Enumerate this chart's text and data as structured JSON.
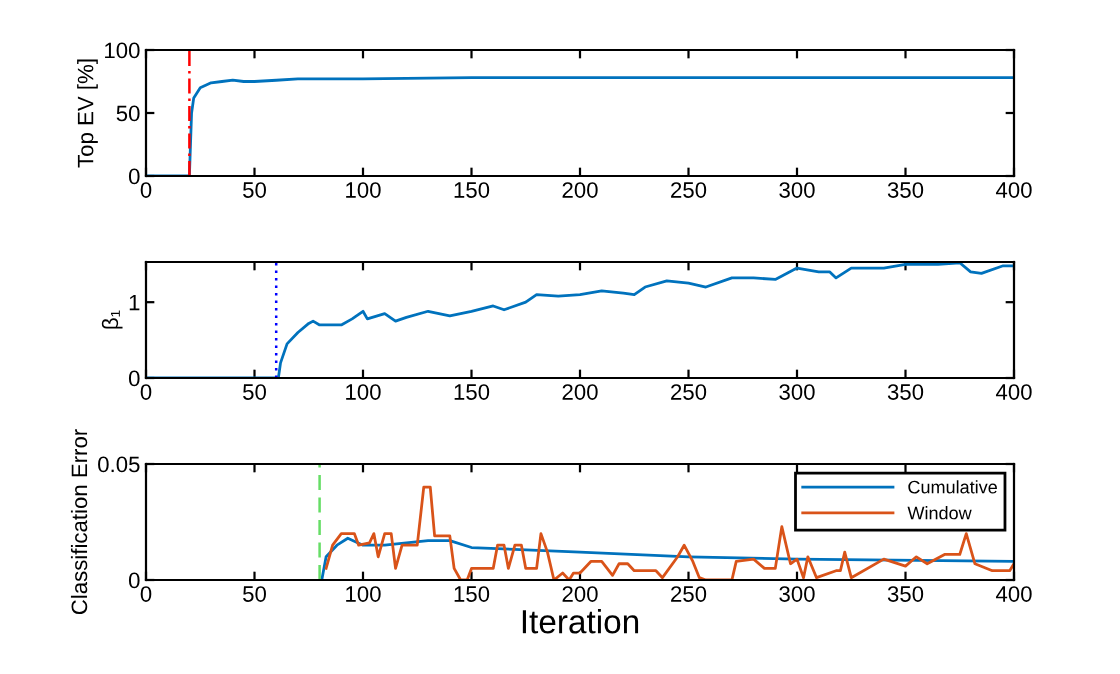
{
  "chart_data": [
    {
      "type": "line",
      "ylabel": "Top EV [%]",
      "xlim": [
        0,
        400
      ],
      "xticks": [
        0,
        50,
        100,
        150,
        200,
        250,
        300,
        350,
        400
      ],
      "ylim": [
        0,
        100
      ],
      "yticks": [
        0,
        50,
        100
      ],
      "grid": false,
      "legend": false,
      "x": [
        0,
        20,
        21,
        22,
        25,
        30,
        35,
        40,
        45,
        50,
        60,
        70,
        100,
        150,
        200,
        250,
        300,
        350,
        400
      ],
      "series": [
        {
          "color": "#0072bd",
          "values": [
            0,
            0,
            50,
            62,
            70,
            74,
            75,
            76,
            75,
            75,
            76,
            77,
            77,
            78,
            78,
            78,
            78,
            78,
            78
          ]
        }
      ],
      "ref_lines": [
        {
          "axis": "x",
          "value": 20,
          "color": "#ff0000",
          "line_style": "dashdot"
        }
      ]
    },
    {
      "type": "line",
      "ylabel": "β₁",
      "xlim": [
        0,
        400
      ],
      "xticks": [
        0,
        50,
        100,
        150,
        200,
        250,
        300,
        350,
        400
      ],
      "ylim": [
        0,
        1.53
      ],
      "yticks": [
        0,
        1
      ],
      "grid": false,
      "legend": false,
      "x": [
        0,
        61,
        62,
        65,
        70,
        75,
        77,
        80,
        90,
        95,
        100,
        102,
        110,
        115,
        120,
        130,
        140,
        150,
        160,
        165,
        175,
        180,
        190,
        200,
        210,
        220,
        225,
        230,
        240,
        250,
        258,
        270,
        280,
        290,
        300,
        310,
        315,
        318,
        325,
        340,
        350,
        365,
        375,
        380,
        385,
        395,
        400
      ],
      "series": [
        {
          "color": "#0072bd",
          "values": [
            0,
            0,
            0.2,
            0.45,
            0.6,
            0.72,
            0.75,
            0.7,
            0.7,
            0.78,
            0.88,
            0.78,
            0.85,
            0.75,
            0.8,
            0.88,
            0.82,
            0.88,
            0.95,
            0.9,
            1.0,
            1.1,
            1.08,
            1.1,
            1.15,
            1.12,
            1.1,
            1.2,
            1.28,
            1.25,
            1.2,
            1.32,
            1.32,
            1.3,
            1.45,
            1.4,
            1.4,
            1.32,
            1.45,
            1.45,
            1.5,
            1.5,
            1.52,
            1.4,
            1.38,
            1.48,
            1.48
          ]
        }
      ],
      "ref_lines": [
        {
          "axis": "x",
          "value": 60,
          "color": "#0000ff",
          "line_style": "dotted"
        }
      ]
    },
    {
      "type": "line",
      "xlabel": "Iteration",
      "ylabel": "Classification Error",
      "xlim": [
        0,
        400
      ],
      "xticks": [
        0,
        50,
        100,
        150,
        200,
        250,
        300,
        350,
        400
      ],
      "ylim": [
        0,
        0.05
      ],
      "yticks": [
        0,
        0.05
      ],
      "grid": false,
      "legend": "top right",
      "series": [
        {
          "name": "Cumulative",
          "color": "#0072bd",
          "x": [
            81,
            83,
            88,
            93,
            100,
            110,
            120,
            130,
            140,
            150,
            200,
            250,
            300,
            400
          ],
          "values": [
            0,
            0.01,
            0.015,
            0.018,
            0.015,
            0.015,
            0.016,
            0.017,
            0.017,
            0.014,
            0.012,
            0.01,
            0.009,
            0.008
          ]
        },
        {
          "name": "Window",
          "color": "#d95319",
          "x": [
            83,
            86,
            90,
            96,
            98,
            103,
            105,
            107,
            110,
            113,
            115,
            118,
            125,
            128,
            131,
            133,
            140,
            142,
            145,
            148,
            150,
            160,
            162,
            165,
            167,
            170,
            173,
            175,
            180,
            182,
            185,
            188,
            192,
            195,
            197,
            200,
            205,
            210,
            215,
            218,
            222,
            225,
            235,
            238,
            245,
            248,
            252,
            255,
            258,
            270,
            272,
            280,
            285,
            290,
            293,
            297,
            300,
            303,
            305,
            309,
            318,
            320,
            322,
            325,
            340,
            350,
            355,
            360,
            368,
            375,
            378,
            382,
            390,
            398,
            400
          ],
          "values": [
            0.005,
            0.015,
            0.02,
            0.02,
            0.015,
            0.016,
            0.02,
            0.01,
            0.02,
            0.02,
            0.005,
            0.015,
            0.015,
            0.04,
            0.04,
            0.019,
            0.019,
            0.005,
            0,
            0,
            0.005,
            0.005,
            0.015,
            0.015,
            0.005,
            0.015,
            0.015,
            0.005,
            0.005,
            0.02,
            0.012,
            0,
            0.003,
            0,
            0.003,
            0.003,
            0.008,
            0.008,
            0.002,
            0.007,
            0.007,
            0.004,
            0.004,
            0.001,
            0.01,
            0.015,
            0.008,
            0.001,
            0,
            0,
            0.008,
            0.009,
            0.005,
            0.005,
            0.023,
            0.007,
            0.009,
            0.001,
            0.01,
            0.001,
            0.004,
            0.004,
            0.012,
            0.001,
            0.009,
            0.006,
            0.01,
            0.007,
            0.011,
            0.011,
            0.02,
            0.007,
            0.004,
            0.004,
            0.007
          ]
        }
      ],
      "ref_lines": [
        {
          "axis": "x",
          "value": 80,
          "color": "#66dd66",
          "line_style": "dashed"
        }
      ]
    }
  ]
}
